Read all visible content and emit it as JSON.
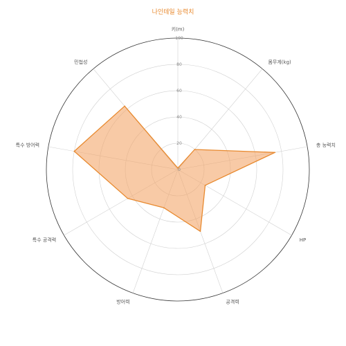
{
  "chart_data": {
    "type": "radar",
    "title": "나인테일 능력치",
    "axes": [
      "키(m)",
      "몸무게(kg)",
      "총 능력치",
      "HP",
      "공격력",
      "방어력",
      "특수 공격력",
      "특수 방어력",
      "민첩성"
    ],
    "rticks": [
      0,
      20,
      40,
      60,
      80,
      100
    ],
    "rlim": [
      0,
      100
    ],
    "series": [
      {
        "values": [
          1.1,
          19.9,
          75,
          24,
          50,
          31,
          44,
          80,
          63
        ]
      }
    ],
    "grid": true,
    "colors": {
      "line": "#e8892e",
      "fill": "#f4a76a",
      "fill_opacity": 0.6,
      "grid": "#d0d0d0",
      "outer": "#333333"
    }
  }
}
